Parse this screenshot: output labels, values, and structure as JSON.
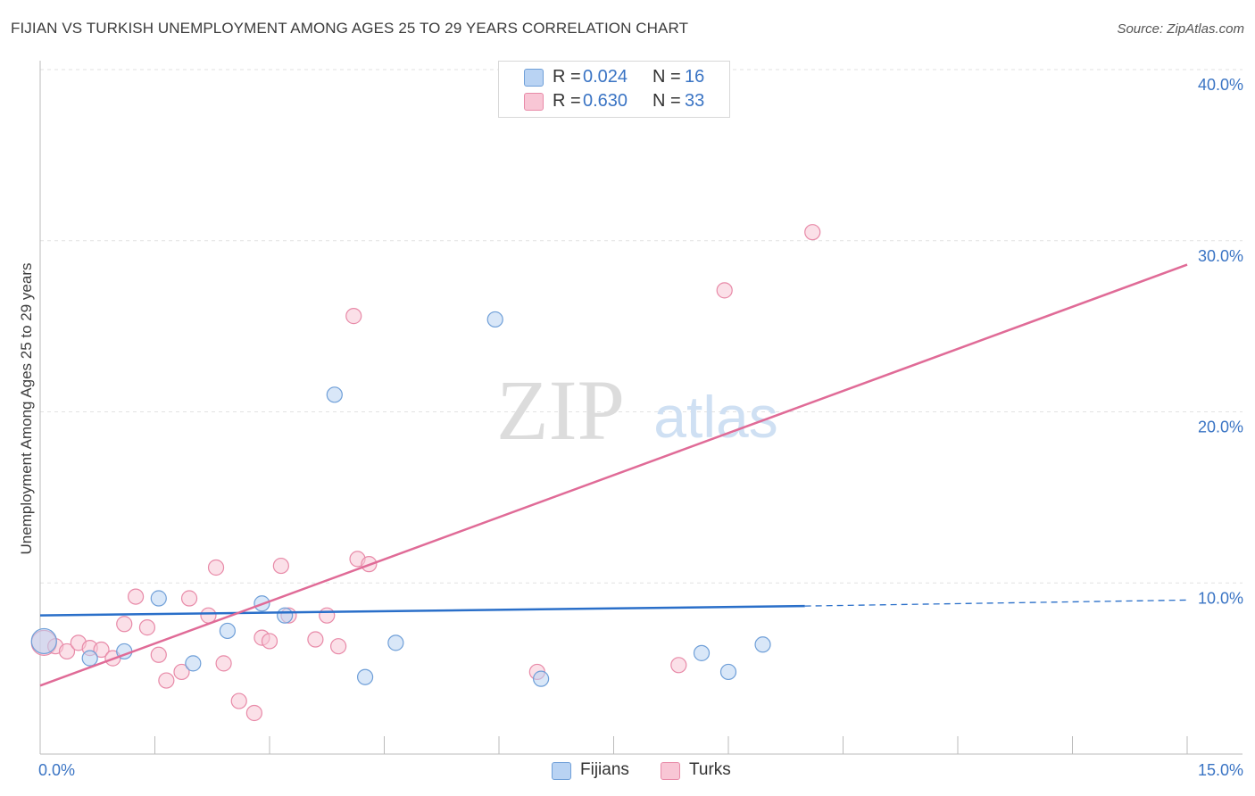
{
  "title": "FIJIAN VS TURKISH UNEMPLOYMENT AMONG AGES 25 TO 29 YEARS CORRELATION CHART",
  "source": "Source: ZipAtlas.com",
  "watermark": {
    "zip": "ZIP",
    "atlas": "atlas"
  },
  "legend": {
    "fijians": {
      "r_label": "R =",
      "r_value": "0.024",
      "n_label": "N =",
      "n_value": "16"
    },
    "turks": {
      "r_label": "R =",
      "r_value": "0.630",
      "n_label": "N =",
      "n_value": "33"
    }
  },
  "colors": {
    "fijians_fill": "#b9d3f3",
    "fijians_stroke": "#6f9fd8",
    "fijians_line": "#2a6fc9",
    "turks_fill": "#f8c6d5",
    "turks_stroke": "#e88aa8",
    "turks_line": "#e06b97",
    "axis_label": "#3a74c4",
    "grid": "#e2e2e2"
  },
  "chart_data": {
    "type": "scatter",
    "xlabel": "",
    "ylabel": "Unemployment Among Ages 25 to 29 years",
    "xlim": [
      0,
      15
    ],
    "ylim": [
      0,
      40
    ],
    "x_tick_labels": [
      "0.0%",
      "15.0%"
    ],
    "y_tick_labels": [
      "10.0%",
      "20.0%",
      "30.0%",
      "40.0%"
    ],
    "y_ticks": [
      10,
      20,
      30,
      40
    ],
    "x_minor_ticks": [
      0,
      1.5,
      3,
      4.5,
      6,
      7.5,
      9,
      10.5,
      12,
      13.5,
      15
    ],
    "series": [
      {
        "name": "Fijians",
        "points": [
          {
            "x": 0.05,
            "y": 6.6
          },
          {
            "x": 0.65,
            "y": 5.6
          },
          {
            "x": 1.1,
            "y": 6.0
          },
          {
            "x": 1.55,
            "y": 9.1
          },
          {
            "x": 2.0,
            "y": 5.3
          },
          {
            "x": 2.45,
            "y": 7.2
          },
          {
            "x": 2.9,
            "y": 8.8
          },
          {
            "x": 3.2,
            "y": 8.1
          },
          {
            "x": 3.85,
            "y": 21.0
          },
          {
            "x": 4.25,
            "y": 4.5
          },
          {
            "x": 4.65,
            "y": 6.5
          },
          {
            "x": 5.95,
            "y": 25.4
          },
          {
            "x": 6.55,
            "y": 4.4
          },
          {
            "x": 8.65,
            "y": 5.9
          },
          {
            "x": 9.0,
            "y": 4.8
          },
          {
            "x": 9.45,
            "y": 6.4
          }
        ],
        "trend": {
          "x0": 0,
          "y0": 8.1,
          "x1": 10.0,
          "y1": 8.65,
          "dashed_to_x": 15,
          "dashed_to_y": 9.0
        }
      },
      {
        "name": "Turks",
        "points": [
          {
            "x": 0.05,
            "y": 6.5
          },
          {
            "x": 0.2,
            "y": 6.3
          },
          {
            "x": 0.35,
            "y": 6.0
          },
          {
            "x": 0.5,
            "y": 6.5
          },
          {
            "x": 0.65,
            "y": 6.2
          },
          {
            "x": 0.8,
            "y": 6.1
          },
          {
            "x": 0.95,
            "y": 5.6
          },
          {
            "x": 1.1,
            "y": 7.6
          },
          {
            "x": 1.25,
            "y": 9.2
          },
          {
            "x": 1.4,
            "y": 7.4
          },
          {
            "x": 1.55,
            "y": 5.8
          },
          {
            "x": 1.65,
            "y": 4.3
          },
          {
            "x": 1.85,
            "y": 4.8
          },
          {
            "x": 1.95,
            "y": 9.1
          },
          {
            "x": 2.2,
            "y": 8.1
          },
          {
            "x": 2.3,
            "y": 10.9
          },
          {
            "x": 2.4,
            "y": 5.3
          },
          {
            "x": 2.6,
            "y": 3.1
          },
          {
            "x": 2.8,
            "y": 2.4
          },
          {
            "x": 2.9,
            "y": 6.8
          },
          {
            "x": 3.0,
            "y": 6.6
          },
          {
            "x": 3.15,
            "y": 11.0
          },
          {
            "x": 3.25,
            "y": 8.1
          },
          {
            "x": 3.6,
            "y": 6.7
          },
          {
            "x": 3.75,
            "y": 8.1
          },
          {
            "x": 3.9,
            "y": 6.3
          },
          {
            "x": 4.1,
            "y": 25.6
          },
          {
            "x": 4.15,
            "y": 11.4
          },
          {
            "x": 4.3,
            "y": 11.1
          },
          {
            "x": 6.5,
            "y": 4.8
          },
          {
            "x": 8.35,
            "y": 5.2
          },
          {
            "x": 8.95,
            "y": 27.1
          },
          {
            "x": 10.1,
            "y": 30.5
          }
        ],
        "trend": {
          "x0": 0,
          "y0": 4.0,
          "x1": 15,
          "y1": 28.6
        }
      }
    ]
  },
  "bottom_legend": {
    "fijians": "Fijians",
    "turks": "Turks"
  }
}
